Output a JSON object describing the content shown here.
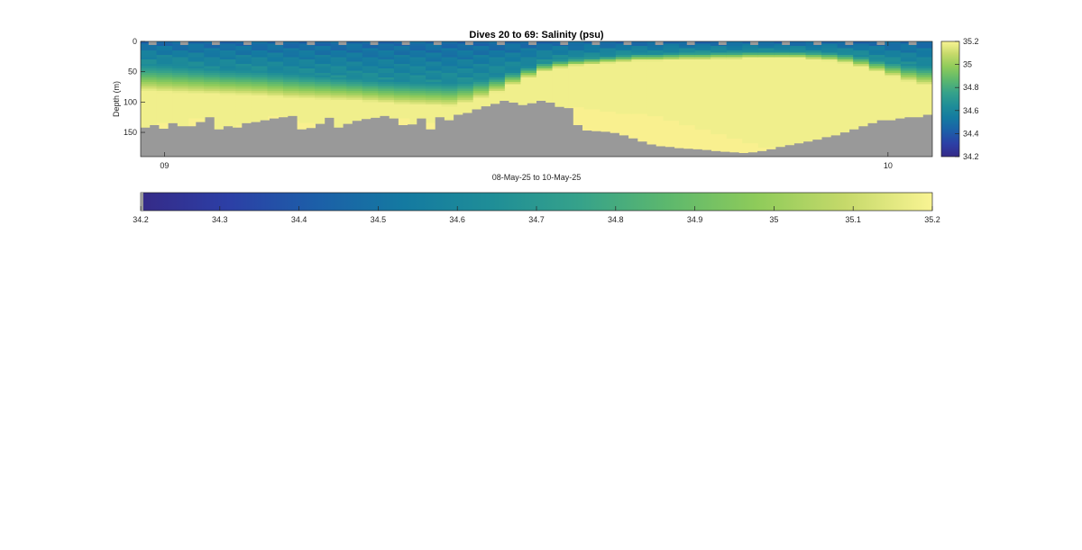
{
  "chart_data": {
    "type": "heatmap",
    "title": "Dives 20 to 69: Salinity (psu)",
    "xlabel": "08-May-25 to 10-May-25",
    "ylabel": "Depth (m)",
    "x_tick_labels": [
      "09",
      "10"
    ],
    "y_tick_labels": [
      "0",
      "50",
      "100",
      "150"
    ],
    "ylim": [
      0,
      190
    ],
    "y_reversed": true,
    "dives": [
      20,
      69
    ],
    "dive_count": 50,
    "colorbar": {
      "min": 34.2,
      "max": 35.2,
      "right_ticks": [
        "35.2",
        "35",
        "34.8",
        "34.6",
        "34.4",
        "34.2"
      ],
      "bottom_ticks": [
        "34.2",
        "34.3",
        "34.4",
        "34.5",
        "34.6",
        "34.7",
        "34.8",
        "34.9",
        "35",
        "35.1",
        "35.2"
      ]
    },
    "colormap": [
      "#352a87",
      "#2c3fa6",
      "#1c5fa8",
      "#147aa1",
      "#1f8e97",
      "#36a28a",
      "#5db86d",
      "#8ecb5a",
      "#c5d96a",
      "#f9f493"
    ],
    "no_data_color": "#999999",
    "bottom_depth_m": [
      140,
      130,
      145,
      125,
      145,
      150,
      137,
      138,
      120,
      128,
      132,
      135,
      148,
      138,
      145,
      130,
      125,
      140,
      132,
      140,
      128,
      122,
      120,
      118,
      115,
      112,
      108,
      105,
      108,
      112,
      116,
      118,
      122,
      128,
      135,
      142,
      150,
      158,
      165,
      172,
      176,
      178,
      180,
      182,
      183,
      180,
      176,
      170,
      165,
      160
    ],
    "bottom_depth_fine_m": [
      142,
      138,
      144,
      135,
      140,
      140,
      133,
      125,
      145,
      140,
      142,
      135,
      133,
      130,
      127,
      125,
      123,
      145,
      143,
      136,
      126,
      142,
      136,
      131,
      128,
      126,
      123,
      127,
      138,
      137,
      127,
      145,
      125,
      130,
      121,
      118,
      112,
      107,
      103,
      98,
      101,
      105,
      102,
      98,
      101,
      108,
      110,
      138,
      147,
      148,
      149,
      151,
      155,
      160,
      165,
      170,
      173,
      174,
      176,
      177,
      178,
      179,
      181,
      182,
      183,
      184,
      183,
      181,
      178,
      174,
      171,
      168,
      165,
      162,
      158,
      155,
      150,
      145,
      140,
      135,
      130,
      130,
      127,
      125,
      125,
      121
    ],
    "thermocline_top_m": [
      35,
      36,
      38,
      40,
      42,
      44,
      45,
      46,
      48,
      50,
      52,
      54,
      56,
      58,
      60,
      62,
      63,
      64,
      65,
      66,
      64,
      60,
      55,
      48,
      40,
      32,
      28,
      26,
      24,
      22,
      20,
      18,
      18,
      17,
      16,
      16,
      15,
      15,
      14,
      14,
      14,
      14,
      15,
      16,
      18,
      22,
      28,
      32,
      36,
      38
    ],
    "thermocline_bottom_m": [
      80,
      82,
      83,
      84,
      85,
      86,
      87,
      88,
      90,
      92,
      93,
      94,
      95,
      96,
      98,
      100,
      102,
      103,
      104,
      105,
      100,
      92,
      82,
      70,
      58,
      48,
      42,
      38,
      36,
      34,
      32,
      30,
      30,
      29,
      28,
      28,
      27,
      27,
      26,
      26,
      26,
      26,
      28,
      30,
      34,
      40,
      48,
      56,
      64,
      70
    ]
  }
}
